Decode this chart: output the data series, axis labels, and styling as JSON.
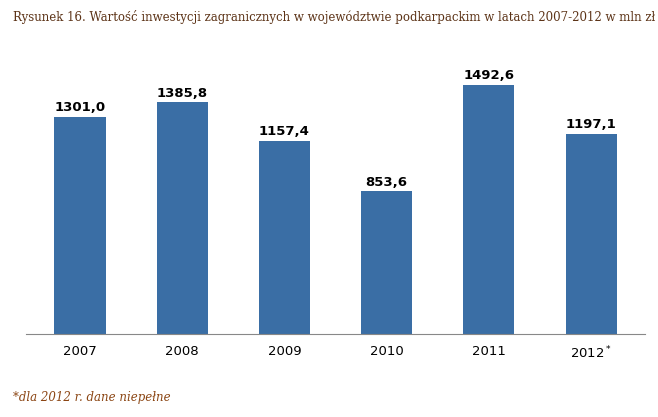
{
  "title": "Rysunek 16. Wartość inwestycji zagranicznych w województwie podkarpackim w latach 2007-2012 w mln zł",
  "categories": [
    "2007",
    "2008",
    "2009",
    "2010",
    "2011",
    "2012*"
  ],
  "values": [
    1301.0,
    1385.8,
    1157.4,
    853.6,
    1492.6,
    1197.1
  ],
  "labels": [
    "1301,0",
    "1385,8",
    "1157,4",
    "853,6",
    "1492,6",
    "1197,1"
  ],
  "bar_color": "#3A6EA5",
  "footnote": "*dla 2012 r. dane niepełne",
  "footnote_color": "#8B4513",
  "title_color": "#5C3317",
  "ylim": [
    0,
    1700
  ],
  "background_color": "#ffffff",
  "label_fontsize": 9.5,
  "title_fontsize": 8.5,
  "footnote_fontsize": 8.5,
  "tick_fontsize": 9.5,
  "bar_width": 0.5
}
